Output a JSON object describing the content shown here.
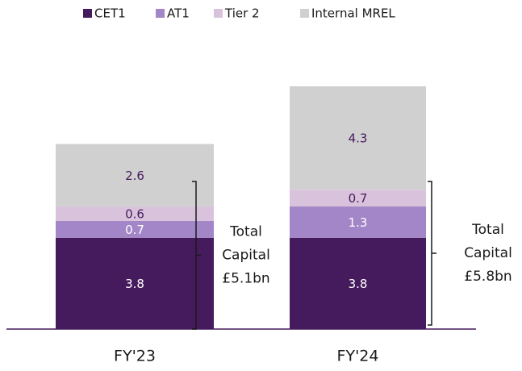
{
  "chart_data": {
    "type": "stacked-bar",
    "categories": [
      "FY'23",
      "FY'24"
    ],
    "series": [
      {
        "name": "CET1",
        "color": "#461b5e",
        "values": [
          3.8,
          3.8
        ]
      },
      {
        "name": "AT1",
        "color": "#a386c7",
        "values": [
          0.7,
          1.3
        ]
      },
      {
        "name": "Tier 2",
        "color": "#d9c3dc",
        "values": [
          0.6,
          0.7
        ]
      },
      {
        "name": "Internal MREL",
        "color": "#d0d0d0",
        "values": [
          2.6,
          4.3
        ]
      }
    ],
    "annotations": [
      {
        "lines": [
          "Total",
          "Capital",
          "£5.1bn"
        ]
      },
      {
        "lines": [
          "Total",
          "Capital",
          "£5.8bn"
        ]
      }
    ]
  }
}
